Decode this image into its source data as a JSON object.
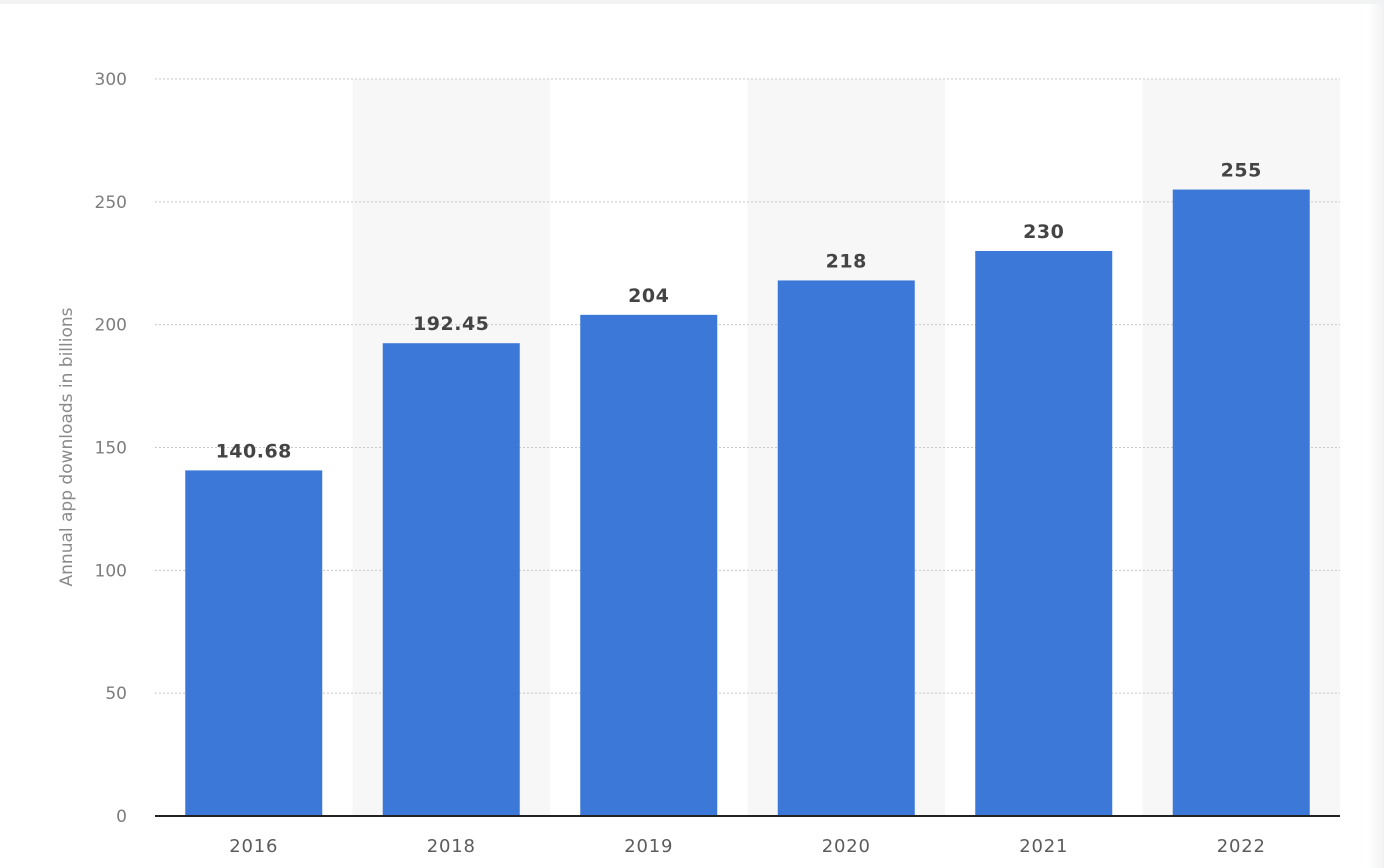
{
  "chart_data": {
    "type": "bar",
    "categories": [
      "2016",
      "2018",
      "2019",
      "2020",
      "2021",
      "2022"
    ],
    "values": [
      140.68,
      192.45,
      204,
      218,
      230,
      255
    ],
    "value_labels": [
      "140.68",
      "192.45",
      "204",
      "218",
      "230",
      "255"
    ],
    "title": "",
    "xlabel": "",
    "ylabel": "Annual app downloads in billions",
    "ylim": [
      0,
      300
    ],
    "yticks": [
      0,
      50,
      100,
      150,
      200,
      250,
      300
    ],
    "grid": true,
    "legend": "none",
    "colors": {
      "bar": "#3b78d8",
      "band": "#f7f7f7",
      "grid": "#c8c8c8",
      "axis": "#222222"
    }
  }
}
